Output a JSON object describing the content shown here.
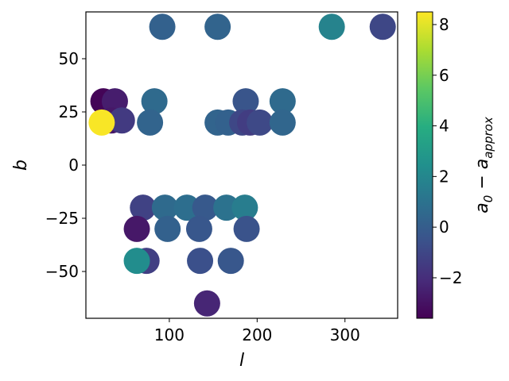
{
  "chart_data": {
    "type": "scatter",
    "xlabel": "l",
    "ylabel": "b",
    "colorbar_label": "a₀ − a_approx",
    "colormap": "viridis",
    "xlim": [
      5,
      360
    ],
    "ylim": [
      -72,
      72
    ],
    "clim": [
      -3.6,
      8.5
    ],
    "x_ticks": [
      100,
      200,
      300
    ],
    "y_ticks": [
      -50,
      -25,
      0,
      25,
      50
    ],
    "colorbar_ticks": [
      -2,
      0,
      2,
      4,
      6,
      8
    ],
    "grid": false,
    "points": [
      {
        "l": 92,
        "b": 65,
        "value": 0.2
      },
      {
        "l": 155,
        "b": 65,
        "value": 0.3
      },
      {
        "l": 285,
        "b": 65,
        "value": 1.8
      },
      {
        "l": 343,
        "b": 65,
        "value": -1.0
      },
      {
        "l": 25,
        "b": 30,
        "value": -3.5
      },
      {
        "l": 38,
        "b": 30,
        "value": -2.6
      },
      {
        "l": 83,
        "b": 30,
        "value": 0.6
      },
      {
        "l": 187,
        "b": 30,
        "value": -0.4
      },
      {
        "l": 229,
        "b": 30,
        "value": 0.6
      },
      {
        "l": 34,
        "b": 21,
        "value": -2.8
      },
      {
        "l": 46,
        "b": 21,
        "value": -1.5
      },
      {
        "l": 78,
        "b": 20,
        "value": 0.3
      },
      {
        "l": 155,
        "b": 20,
        "value": 0.3
      },
      {
        "l": 167,
        "b": 20,
        "value": 0.2
      },
      {
        "l": 183,
        "b": 20,
        "value": -1.0
      },
      {
        "l": 192,
        "b": 20,
        "value": -1.4
      },
      {
        "l": 203,
        "b": 20,
        "value": -0.9
      },
      {
        "l": 229,
        "b": 20,
        "value": 0.4
      },
      {
        "l": 23,
        "b": 20,
        "value": 8.4
      },
      {
        "l": 70,
        "b": -20,
        "value": -1.2
      },
      {
        "l": 95,
        "b": -20,
        "value": 0.6
      },
      {
        "l": 120,
        "b": -20,
        "value": 0.8
      },
      {
        "l": 141,
        "b": -20,
        "value": -0.2
      },
      {
        "l": 165,
        "b": -20,
        "value": 1.0
      },
      {
        "l": 186,
        "b": -20,
        "value": 1.5
      },
      {
        "l": 63,
        "b": -30,
        "value": -2.8
      },
      {
        "l": 98,
        "b": -30,
        "value": 0.2
      },
      {
        "l": 134,
        "b": -30,
        "value": -0.3
      },
      {
        "l": 188,
        "b": -30,
        "value": -0.5
      },
      {
        "l": 74,
        "b": -45,
        "value": -1.3
      },
      {
        "l": 135,
        "b": -45,
        "value": -0.6
      },
      {
        "l": 170,
        "b": -45,
        "value": -0.3
      },
      {
        "l": 63,
        "b": -45,
        "value": 2.3
      },
      {
        "l": 143,
        "b": -65,
        "value": -2.3
      }
    ]
  },
  "labels": {
    "xlabel_text": "l",
    "ylabel_text": "b"
  }
}
